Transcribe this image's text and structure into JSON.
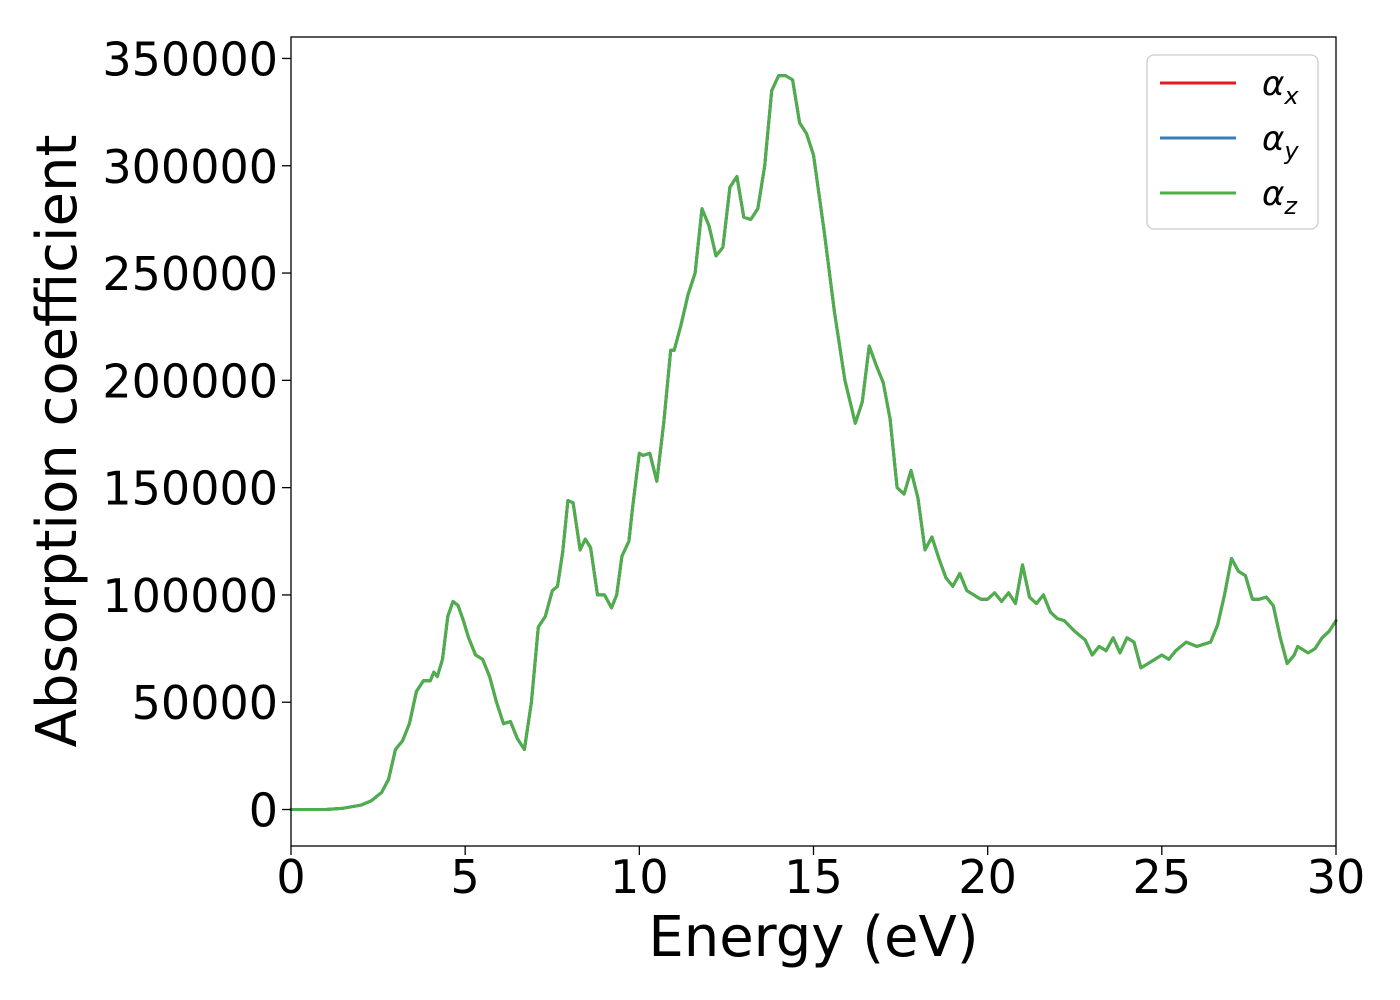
{
  "chart_data": {
    "type": "line",
    "title": "",
    "xlabel": "Energy (eV)",
    "ylabel": "Absorption coefficient",
    "xlim": [
      0,
      30
    ],
    "ylim": [
      -17000,
      360000
    ],
    "xticks": [
      0,
      5,
      10,
      15,
      20,
      25,
      30
    ],
    "xtick_labels": [
      "0",
      "5",
      "10",
      "15",
      "20",
      "25",
      "30"
    ],
    "yticks": [
      0,
      50000,
      100000,
      150000,
      200000,
      250000,
      300000,
      350000
    ],
    "ytick_labels": [
      "0",
      "50000",
      "100000",
      "150000",
      "200000",
      "250000",
      "300000",
      "350000"
    ],
    "grid": false,
    "legend_position": "top-right",
    "x": [
      0,
      0.5,
      1.0,
      1.5,
      2.0,
      2.3,
      2.6,
      2.8,
      3.0,
      3.1,
      3.2,
      3.4,
      3.6,
      3.8,
      4.0,
      4.1,
      4.2,
      4.35,
      4.5,
      4.65,
      4.8,
      4.95,
      5.1,
      5.3,
      5.5,
      5.7,
      5.9,
      6.1,
      6.3,
      6.5,
      6.7,
      6.9,
      7.1,
      7.3,
      7.5,
      7.65,
      7.8,
      7.95,
      8.1,
      8.3,
      8.45,
      8.6,
      8.8,
      9.0,
      9.2,
      9.35,
      9.5,
      9.7,
      9.8,
      10.0,
      10.1,
      10.3,
      10.5,
      10.7,
      10.9,
      11.0,
      11.2,
      11.4,
      11.6,
      11.8,
      12.0,
      12.2,
      12.4,
      12.6,
      12.8,
      13.0,
      13.2,
      13.4,
      13.6,
      13.8,
      14.0,
      14.2,
      14.4,
      14.6,
      14.8,
      15.0,
      15.3,
      15.6,
      15.9,
      16.2,
      16.4,
      16.6,
      16.8,
      17.0,
      17.2,
      17.4,
      17.6,
      17.8,
      18.0,
      18.2,
      18.4,
      18.6,
      18.8,
      19.0,
      19.2,
      19.4,
      19.6,
      19.8,
      20.0,
      20.2,
      20.4,
      20.6,
      20.8,
      21.0,
      21.2,
      21.4,
      21.6,
      21.8,
      22.0,
      22.2,
      22.5,
      22.8,
      23.0,
      23.2,
      23.4,
      23.6,
      23.8,
      24.0,
      24.2,
      24.4,
      24.6,
      24.8,
      25.0,
      25.2,
      25.4,
      25.7,
      26.0,
      26.2,
      26.4,
      26.6,
      26.8,
      27.0,
      27.2,
      27.4,
      27.6,
      27.8,
      28.0,
      28.2,
      28.4,
      28.6,
      28.8,
      28.9,
      29.0,
      29.2,
      29.4,
      29.6,
      29.8,
      30.0
    ],
    "series": [
      {
        "name": "α_x",
        "symbol": "α",
        "subscript": "x",
        "color": "#e41a1c",
        "values": [
          0,
          0,
          0,
          600,
          2000,
          4000,
          8000,
          14000,
          28000,
          30000,
          32000,
          40000,
          55000,
          60000,
          60000,
          64000,
          62000,
          70000,
          90000,
          97000,
          95000,
          88000,
          80000,
          72000,
          70000,
          62000,
          50000,
          40000,
          41000,
          33000,
          28000,
          50000,
          85000,
          90000,
          102000,
          104000,
          120000,
          144000,
          143000,
          121000,
          126000,
          122000,
          100000,
          100000,
          94000,
          100000,
          118000,
          125000,
          140000,
          166000,
          165000,
          166000,
          153000,
          180000,
          214000,
          214000,
          226000,
          240000,
          250000,
          280000,
          272000,
          258000,
          262000,
          290000,
          295000,
          276000,
          275000,
          280000,
          300000,
          335000,
          342000,
          342000,
          340000,
          320000,
          315000,
          305000,
          270000,
          232000,
          200000,
          180000,
          190000,
          216000,
          207000,
          199000,
          182000,
          150000,
          147000,
          158000,
          145000,
          121000,
          127000,
          117000,
          108000,
          104000,
          110000,
          102000,
          100000,
          98000,
          98000,
          101000,
          97000,
          101000,
          96000,
          114000,
          99000,
          96000,
          100000,
          92000,
          89000,
          88000,
          83000,
          79000,
          72000,
          76000,
          74000,
          80000,
          73000,
          80000,
          78000,
          66000,
          68000,
          70000,
          72000,
          70000,
          74000,
          78000,
          76000,
          77000,
          78000,
          86000,
          100000,
          117000,
          111000,
          109000,
          98000,
          98000,
          99000,
          95000,
          80000,
          68000,
          72000,
          76000,
          75000,
          73000,
          75000,
          80000,
          83000,
          88000
        ]
      },
      {
        "name": "α_y",
        "symbol": "α",
        "subscript": "y",
        "color": "#377eb8",
        "values": [
          0,
          0,
          0,
          600,
          2000,
          4000,
          8000,
          14000,
          28000,
          30000,
          32000,
          40000,
          55000,
          60000,
          60000,
          64000,
          62000,
          70000,
          90000,
          97000,
          95000,
          88000,
          80000,
          72000,
          70000,
          62000,
          50000,
          40000,
          41000,
          33000,
          28000,
          50000,
          85000,
          90000,
          102000,
          104000,
          120000,
          144000,
          143000,
          121000,
          126000,
          122000,
          100000,
          100000,
          94000,
          100000,
          118000,
          125000,
          140000,
          166000,
          165000,
          166000,
          153000,
          180000,
          214000,
          214000,
          226000,
          240000,
          250000,
          280000,
          272000,
          258000,
          262000,
          290000,
          295000,
          276000,
          275000,
          280000,
          300000,
          335000,
          342000,
          342000,
          340000,
          320000,
          315000,
          305000,
          270000,
          232000,
          200000,
          180000,
          190000,
          216000,
          207000,
          199000,
          182000,
          150000,
          147000,
          158000,
          145000,
          121000,
          127000,
          117000,
          108000,
          104000,
          110000,
          102000,
          100000,
          98000,
          98000,
          101000,
          97000,
          101000,
          96000,
          114000,
          99000,
          96000,
          100000,
          92000,
          89000,
          88000,
          83000,
          79000,
          72000,
          76000,
          74000,
          80000,
          73000,
          80000,
          78000,
          66000,
          68000,
          70000,
          72000,
          70000,
          74000,
          78000,
          76000,
          77000,
          78000,
          86000,
          100000,
          117000,
          111000,
          109000,
          98000,
          98000,
          99000,
          95000,
          80000,
          68000,
          72000,
          76000,
          75000,
          73000,
          75000,
          80000,
          83000,
          88000
        ]
      },
      {
        "name": "α_z",
        "symbol": "α",
        "subscript": "z",
        "color": "#4daf4a",
        "values": [
          0,
          0,
          0,
          600,
          2000,
          4000,
          8000,
          14000,
          28000,
          30000,
          32000,
          40000,
          55000,
          60000,
          60000,
          64000,
          62000,
          70000,
          90000,
          97000,
          95000,
          88000,
          80000,
          72000,
          70000,
          62000,
          50000,
          40000,
          41000,
          33000,
          28000,
          50000,
          85000,
          90000,
          102000,
          104000,
          120000,
          144000,
          143000,
          121000,
          126000,
          122000,
          100000,
          100000,
          94000,
          100000,
          118000,
          125000,
          140000,
          166000,
          165000,
          166000,
          153000,
          180000,
          214000,
          214000,
          226000,
          240000,
          250000,
          280000,
          272000,
          258000,
          262000,
          290000,
          295000,
          276000,
          275000,
          280000,
          300000,
          335000,
          342000,
          342000,
          340000,
          320000,
          315000,
          305000,
          270000,
          232000,
          200000,
          180000,
          190000,
          216000,
          207000,
          199000,
          182000,
          150000,
          147000,
          158000,
          145000,
          121000,
          127000,
          117000,
          108000,
          104000,
          110000,
          102000,
          100000,
          98000,
          98000,
          101000,
          97000,
          101000,
          96000,
          114000,
          99000,
          96000,
          100000,
          92000,
          89000,
          88000,
          83000,
          79000,
          72000,
          76000,
          74000,
          80000,
          73000,
          80000,
          78000,
          66000,
          68000,
          70000,
          72000,
          70000,
          74000,
          78000,
          76000,
          77000,
          78000,
          86000,
          100000,
          117000,
          111000,
          109000,
          98000,
          98000,
          99000,
          95000,
          80000,
          68000,
          72000,
          76000,
          75000,
          73000,
          75000,
          80000,
          83000,
          88000
        ]
      }
    ]
  }
}
